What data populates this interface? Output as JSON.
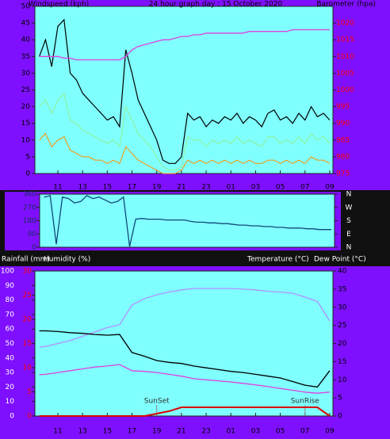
{
  "chart_data": [
    {
      "type": "line",
      "title": "24 hour graph day : 15 October 2020",
      "y_label": "Windspeed (kph)",
      "y2_label": "Barometer (hpa)",
      "x": [
        9.5,
        10,
        10.5,
        11,
        11.5,
        12,
        12.5,
        13,
        13.5,
        14,
        14.5,
        15,
        15.5,
        16,
        16.5,
        17,
        17.5,
        18,
        18.5,
        19,
        19.5,
        20,
        20.5,
        21,
        21.5,
        22,
        22.5,
        23,
        23.5,
        24,
        24.5,
        25,
        25.5,
        26,
        26.5,
        27,
        27.5,
        28,
        28.5,
        29,
        29.5,
        30,
        30.5,
        31,
        31.5,
        32,
        32.5,
        33
      ],
      "xlim": [
        9.14,
        33.26
      ],
      "xticks": [
        11,
        13,
        15,
        17,
        19,
        21,
        23,
        {
          "value": 25,
          "label": "01"
        },
        {
          "value": 27,
          "label": "03"
        },
        {
          "value": 29,
          "label": "05"
        },
        {
          "value": 31,
          "label": "07"
        },
        {
          "value": 33,
          "label": "09"
        }
      ],
      "ylim": [
        0,
        50
      ],
      "yticks": [
        0,
        5,
        10,
        15,
        20,
        25,
        30,
        35,
        40,
        45,
        50
      ],
      "y2lim": [
        975,
        1025
      ],
      "y2ticks": [
        975,
        980,
        985,
        990,
        995,
        1000,
        1005,
        1010,
        1015,
        1020
      ],
      "series": [
        {
          "color": "#000000",
          "values": [
            35,
            40,
            32,
            44,
            46,
            30,
            28,
            24,
            22,
            20,
            18,
            16,
            17,
            14,
            37,
            30,
            22,
            18,
            14,
            10,
            4,
            3,
            3,
            5,
            18,
            16,
            17,
            14,
            16,
            15,
            17,
            16,
            18,
            15,
            17,
            16,
            14,
            18,
            19,
            16,
            17,
            15,
            18,
            16,
            20,
            17,
            18,
            16
          ]
        },
        {
          "color": "#90f090",
          "values": [
            20,
            22,
            18,
            22,
            24,
            16,
            15,
            13,
            12,
            11,
            10,
            9,
            10,
            8,
            20,
            16,
            12,
            10,
            8,
            5,
            2,
            1,
            1,
            2,
            11,
            10,
            10,
            8,
            10,
            9,
            10,
            9,
            11,
            9,
            10,
            9,
            8,
            11,
            11,
            9,
            10,
            9,
            11,
            9,
            12,
            10,
            11,
            9
          ]
        },
        {
          "color": "#ff9000",
          "values": [
            10,
            12,
            8,
            10,
            11,
            7,
            6,
            5,
            5,
            4,
            4,
            3,
            4,
            3,
            8,
            6,
            4,
            3,
            2,
            1,
            0,
            0,
            0,
            1,
            4,
            3,
            4,
            3,
            4,
            3,
            4,
            3,
            4,
            3,
            4,
            3,
            3,
            4,
            4,
            3,
            4,
            3,
            4,
            3,
            5,
            4,
            4,
            3
          ]
        },
        {
          "color": "#e040e0",
          "axis": "y2",
          "values": [
            1010,
            1010,
            1010,
            1010,
            1009.5,
            1009.5,
            1009,
            1009,
            1009,
            1009,
            1009,
            1009,
            1009,
            1009,
            1010,
            1012,
            1013,
            1013.5,
            1014,
            1014.5,
            1015,
            1015,
            1015.5,
            1016,
            1016,
            1016.5,
            1016.5,
            1017,
            1017,
            1017,
            1017,
            1017,
            1017,
            1017,
            1017.5,
            1017.5,
            1017.5,
            1017.5,
            1017.5,
            1017.5,
            1017.5,
            1018,
            1018,
            1018,
            1018,
            1018,
            1018,
            1018
          ]
        }
      ]
    },
    {
      "type": "line",
      "x": [
        9.5,
        10,
        10.5,
        11,
        11.5,
        12,
        12.5,
        13,
        13.5,
        14,
        14.5,
        15,
        15.5,
        16,
        16.5,
        17,
        17.5,
        18,
        18.5,
        19,
        19.5,
        20,
        20.5,
        21,
        21.5,
        22,
        22.5,
        23,
        23.5,
        24,
        24.5,
        25,
        25.5,
        26,
        26.5,
        27,
        27.5,
        28,
        28.5,
        29,
        29.5,
        30,
        30.5,
        31,
        31.5,
        32,
        32.5,
        33
      ],
      "xlim": [
        9.14,
        33.26
      ],
      "ylim": [
        0,
        360
      ],
      "yticks": [
        0,
        90,
        180,
        270,
        360
      ],
      "y2lim": [
        0,
        360
      ],
      "y2ticks": [
        {
          "value": 360,
          "label": "N"
        },
        {
          "value": 270,
          "label": "W"
        },
        {
          "value": 180,
          "label": "S"
        },
        {
          "value": 90,
          "label": "E"
        },
        {
          "value": 0,
          "label": "N"
        }
      ],
      "series": [
        {
          "color": "#104878",
          "values": [
            340,
            350,
            20,
            340,
            330,
            300,
            310,
            350,
            330,
            340,
            320,
            300,
            310,
            340,
            5,
            190,
            195,
            190,
            190,
            190,
            185,
            185,
            185,
            185,
            175,
            170,
            170,
            165,
            165,
            160,
            160,
            155,
            150,
            150,
            145,
            145,
            140,
            140,
            135,
            135,
            130,
            130,
            130,
            125,
            125,
            120,
            120,
            120
          ]
        }
      ]
    },
    {
      "type": "line",
      "x": [
        9.5,
        10,
        11,
        12,
        13,
        14,
        15,
        16,
        17,
        18,
        19,
        20,
        21,
        22,
        23,
        24,
        25,
        26,
        27,
        28,
        29,
        30,
        31,
        32,
        33
      ],
      "xlim": [
        9.14,
        33.26
      ],
      "xticks": [
        11,
        13,
        15,
        17,
        19,
        21,
        23,
        {
          "value": 25,
          "label": "01"
        },
        {
          "value": 27,
          "label": "03"
        },
        {
          "value": 29,
          "label": "05"
        },
        {
          "value": 31,
          "label": "07"
        },
        {
          "value": 33,
          "label": "09"
        }
      ],
      "ylim": [
        0,
        100
      ],
      "yticks": [
        0,
        10,
        20,
        30,
        40,
        50,
        60,
        70,
        80,
        90,
        100
      ],
      "y2lim": [
        0,
        40
      ],
      "y2ticks": [
        0,
        5,
        10,
        15,
        20,
        25,
        30,
        35,
        40
      ],
      "y3lim": [
        0,
        30
      ],
      "y3ticks": [
        0,
        5,
        10,
        15,
        20,
        25,
        30
      ],
      "annotations": [
        {
          "text": "SunSet",
          "x": 19
        },
        {
          "text": "SunRise",
          "x": 31
        }
      ],
      "series": [
        {
          "name": "Rainfall (mm)",
          "color": "#dd0000",
          "axis": "y3",
          "values": [
            0,
            0,
            0,
            0,
            0,
            0,
            0,
            0,
            0,
            0,
            0.5,
            1,
            1.8,
            1.8,
            1.8,
            1.8,
            1.8,
            1.8,
            1.8,
            1.8,
            1.8,
            1.8,
            1.8,
            1.8,
            0
          ]
        },
        {
          "name": "Humidity (%)",
          "color": "#b090ff",
          "values": [
            47.5,
            48,
            50,
            52,
            55,
            58,
            61,
            63,
            76.5,
            81,
            83.6,
            85.5,
            87,
            88,
            88,
            88,
            88,
            87.5,
            87,
            86,
            85.5,
            84.7,
            82,
            79,
            65.6
          ]
        },
        {
          "name": "Temperature (°C)",
          "color": "#000000",
          "axis": "y2",
          "values": [
            23.5,
            23.5,
            23.3,
            23,
            22.8,
            22.5,
            22.3,
            22.5,
            17.5,
            16.5,
            15.3,
            14.8,
            14.5,
            13.8,
            13.3,
            12.8,
            12.3,
            12,
            11.5,
            11,
            10.5,
            9.5,
            8.5,
            8,
            12.5
          ]
        },
        {
          "name": "Dew Point (°C)",
          "color": "#e040e0",
          "axis": "y2",
          "values": [
            11.4,
            11.5,
            12,
            12.5,
            13,
            13.5,
            13.8,
            14.2,
            12.5,
            12.3,
            12,
            11.5,
            11,
            10.3,
            10,
            9.7,
            9.4,
            9,
            8.6,
            8.1,
            7.6,
            7.1,
            6.6,
            6.3,
            6.6
          ]
        }
      ]
    }
  ]
}
